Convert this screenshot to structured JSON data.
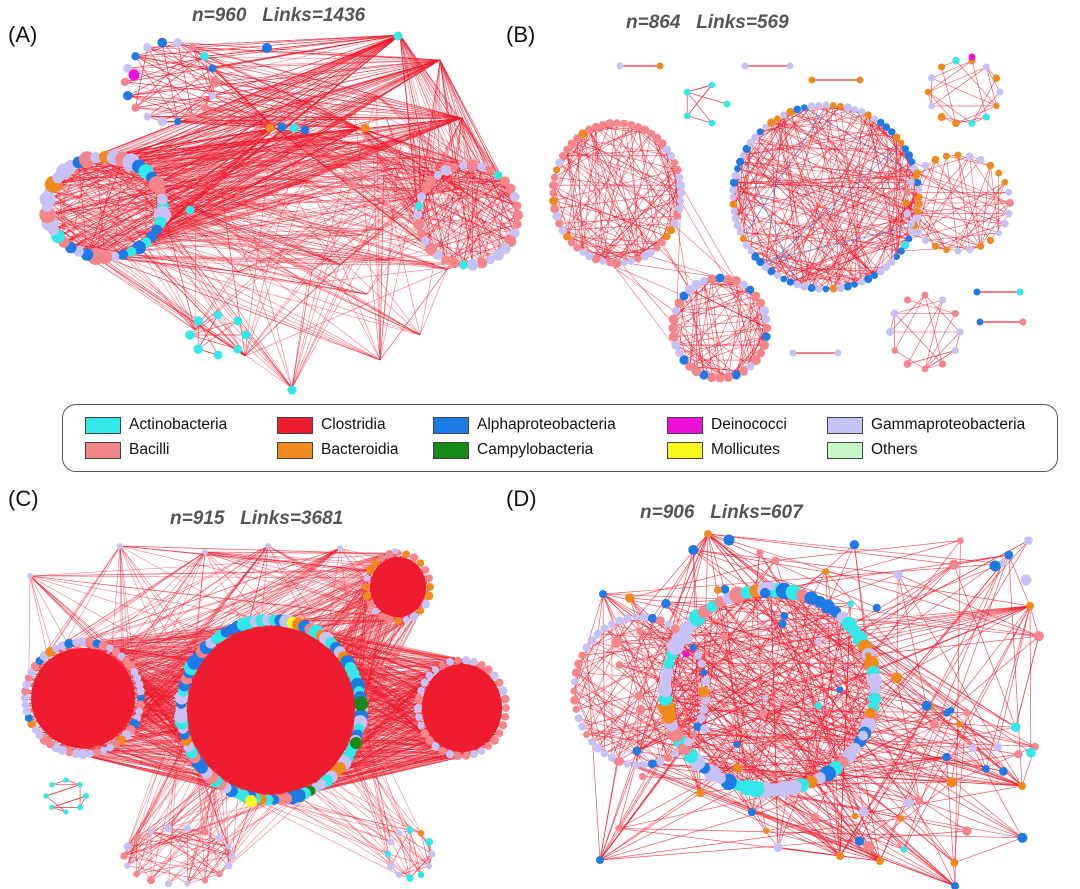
{
  "panels": [
    {
      "id": "A",
      "label": "(A)",
      "n_text": "n=960",
      "links_text": "Links=1436"
    },
    {
      "id": "B",
      "label": "(B)",
      "n_text": "n=864",
      "links_text": "Links=569"
    },
    {
      "id": "C",
      "label": "(C)",
      "n_text": "n=915",
      "links_text": "Links=3681"
    },
    {
      "id": "D",
      "label": "(D)",
      "n_text": "n=906",
      "links_text": "Links=607"
    }
  ],
  "legend": [
    {
      "name": "Actinobacteria",
      "color": "#33e8e8"
    },
    {
      "name": "Bacilli",
      "color": "#f4858a"
    },
    {
      "name": "Clostridia",
      "color": "#ee1c2e"
    },
    {
      "name": "Bacteroidia",
      "color": "#f08a1c"
    },
    {
      "name": "Alphaproteobacteria",
      "color": "#1c7be6"
    },
    {
      "name": "Campylobacteria",
      "color": "#168a16"
    },
    {
      "name": "Deinococci",
      "color": "#ee10d8"
    },
    {
      "name": "Mollicutes",
      "color": "#f7f71c"
    },
    {
      "name": "Gammaproteobacteria",
      "color": "#c6c2f6"
    },
    {
      "name": "Others",
      "color": "#c8f6c8"
    }
  ],
  "edge_color": "#ee1c2e"
}
